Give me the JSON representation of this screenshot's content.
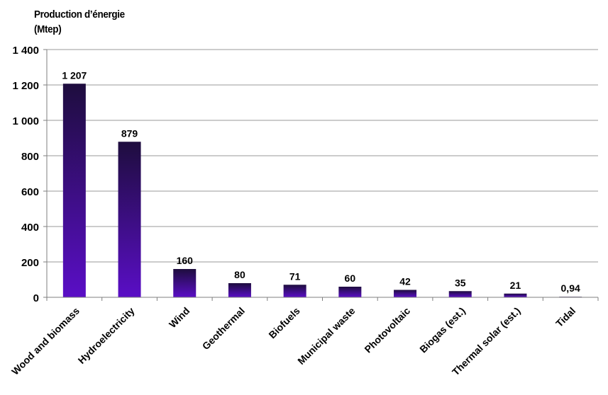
{
  "chart_data": {
    "type": "bar",
    "title_lines": [
      "Production d’énergie",
      "(Mtep)"
    ],
    "categories": [
      "Wood and biomass",
      "Hydroelectricity",
      "Wind",
      "Geothermal",
      "Biofuels",
      "Municipal waste",
      "Photovoltaic",
      "Biogas (est.)",
      "Thermal solar (est.)",
      "Tidal"
    ],
    "values": [
      1207,
      879,
      160,
      80,
      71,
      60,
      42,
      35,
      21,
      0.94
    ],
    "data_labels": [
      "1 207",
      "879",
      "160",
      "80",
      "71",
      "60",
      "42",
      "35",
      "21",
      "0,94"
    ],
    "y_ticks": [
      0,
      200,
      400,
      600,
      800,
      1000,
      1200,
      1400
    ],
    "y_tick_labels": [
      "0",
      "200",
      "400",
      "600",
      "800",
      "1 000",
      "1 200",
      "1 400"
    ],
    "ylim": [
      0,
      1400
    ],
    "grid": true,
    "legend": "none",
    "colors": {
      "bar_top": "#1e0d3e",
      "bar_bottom": "#5a0ec6",
      "grid": "#9a9a9a",
      "axis": "#7f7f7f"
    }
  }
}
